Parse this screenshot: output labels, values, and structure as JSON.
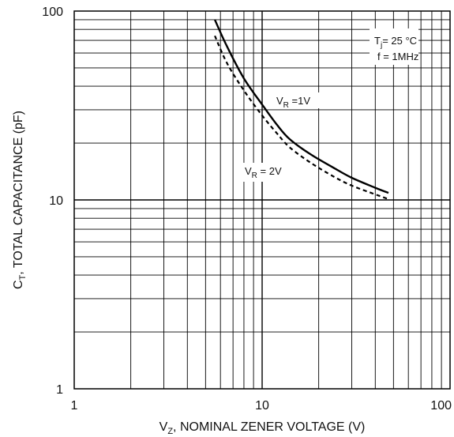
{
  "chart_data": {
    "type": "line",
    "xscale": "log",
    "yscale": "log",
    "xlim": [
      1,
      100
    ],
    "ylim": [
      1,
      100
    ],
    "grid": true,
    "xlabel": {
      "prefix": "V",
      "sub": "Z",
      "rest": ", NOMINAL ZENER VOLTAGE (V)"
    },
    "ylabel": {
      "prefix": "C",
      "sub": "T",
      "rest": ", TOTAL CAPACITANCE (pF)"
    },
    "xticks": [
      1,
      10,
      100
    ],
    "xtick_labels": [
      "1",
      "10",
      "100"
    ],
    "yticks": [
      1,
      10,
      100
    ],
    "ytick_labels": [
      "1",
      "10",
      "100"
    ],
    "conditions": {
      "tj": {
        "prefix": "T",
        "sub": "j",
        "rest": "= 25 °C"
      },
      "freq": "f = 1MHz"
    },
    "series": [
      {
        "name": "V_R = 1V",
        "label": {
          "prefix": "V",
          "sub": "R",
          "rest": " =1V"
        },
        "style": "solid",
        "x": [
          5.6,
          6.5,
          8,
          10,
          12,
          14,
          18,
          24,
          30,
          40,
          47
        ],
        "y": [
          90,
          65,
          44,
          32,
          25,
          21,
          17.5,
          14.8,
          13.1,
          11.6,
          10.9
        ]
      },
      {
        "name": "V_R = 2V",
        "label": {
          "prefix": "V",
          "sub": "R",
          "rest": " = 2V"
        },
        "style": "dashed",
        "x": [
          5.6,
          6.5,
          8,
          10,
          12,
          14,
          18,
          24,
          30,
          40,
          47
        ],
        "y": [
          74,
          53,
          38,
          28,
          22.5,
          19,
          15.8,
          13.3,
          11.9,
          10.7,
          10.1
        ]
      }
    ]
  }
}
